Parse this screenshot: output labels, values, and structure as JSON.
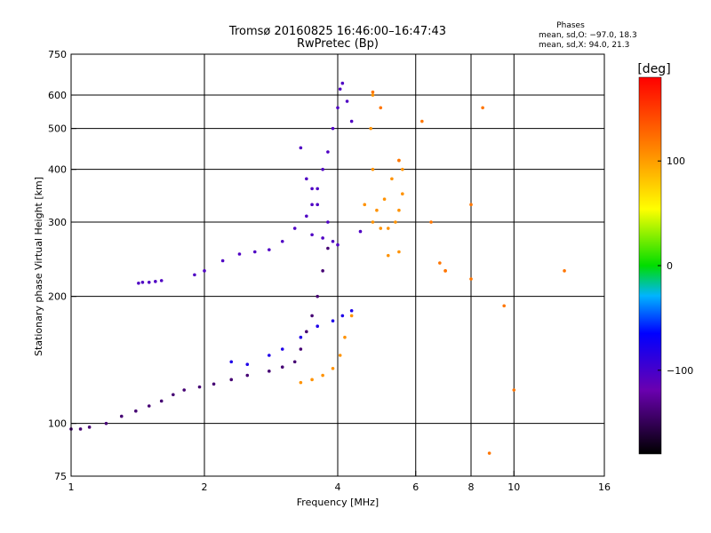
{
  "chart_data": {
    "type": "scatter",
    "title": "Tromsø 20160825 16:46:00–16:47:43",
    "subtitle": "RwPretec (Bp)",
    "xlabel": "Frequency [MHz]",
    "ylabel": "Stationary phase Virtual Height [km]",
    "x_scale": "log",
    "y_scale": "log",
    "xlim": [
      1,
      16
    ],
    "ylim": [
      75,
      750
    ],
    "x_ticks": [
      1,
      2,
      4,
      6,
      8,
      10,
      16
    ],
    "x_tick_labels": [
      "1",
      "2",
      "4",
      "6",
      "8",
      "10",
      "16"
    ],
    "y_ticks": [
      75,
      100,
      200,
      300,
      400,
      500,
      600,
      750
    ],
    "y_tick_labels": [
      "75",
      "100",
      "200",
      "300",
      "400",
      "500",
      "600",
      "750"
    ],
    "grid": true,
    "phases": {
      "heading": "Phases",
      "line_o": "mean, sd,O: −97.0, 18.3",
      "line_x": "mean, sd,X:  94.0, 21.3"
    },
    "colorbar": {
      "label": "[deg]",
      "min": -180,
      "max": 180,
      "ticks": [
        100,
        0,
        -100
      ],
      "tick_labels": [
        "100",
        "0",
        "−100"
      ]
    },
    "series": [
      {
        "phase_deg": -140,
        "x": [
          1.0,
          1.05,
          1.1,
          1.2,
          1.3,
          1.4,
          1.5,
          1.6,
          1.7,
          1.8,
          1.95,
          2.1,
          2.3,
          2.5,
          2.8,
          3.0,
          3.2,
          3.3,
          3.4,
          3.5,
          3.6,
          3.7,
          3.8
        ],
        "y": [
          97,
          97,
          98,
          100,
          104,
          107,
          110,
          113,
          117,
          120,
          122,
          124,
          127,
          130,
          133,
          136,
          140,
          150,
          165,
          180,
          200,
          230,
          260
        ]
      },
      {
        "phase_deg": -105,
        "x": [
          1.42,
          1.45,
          1.5,
          1.55,
          1.6,
          1.9,
          2.0,
          2.2,
          2.4,
          2.6,
          2.8,
          3.0,
          3.2,
          3.4,
          3.5,
          3.6,
          3.7,
          3.8,
          3.9,
          4.0,
          4.05,
          4.1,
          4.2,
          4.3,
          4.5,
          3.8,
          3.6,
          3.5,
          3.4,
          3.3,
          3.5,
          3.7,
          3.9,
          4.0
        ],
        "y": [
          215,
          216,
          216,
          217,
          218,
          225,
          230,
          243,
          252,
          255,
          258,
          270,
          290,
          310,
          330,
          360,
          400,
          440,
          500,
          560,
          620,
          640,
          580,
          520,
          285,
          300,
          330,
          360,
          380,
          450,
          280,
          275,
          270,
          265
        ]
      },
      {
        "phase_deg": -80,
        "x": [
          2.3,
          2.5,
          2.8,
          3.0,
          3.3,
          3.6,
          3.9,
          4.1,
          4.3
        ],
        "y": [
          140,
          138,
          145,
          150,
          160,
          170,
          175,
          180,
          185
        ]
      },
      {
        "phase_deg": 105,
        "x": [
          3.3,
          3.5,
          3.7,
          3.9,
          4.05,
          4.15,
          4.3,
          4.6,
          4.8,
          5.0,
          5.2,
          5.4,
          5.5,
          5.6,
          5.6,
          5.5,
          5.3,
          5.1,
          4.9,
          4.8,
          4.75,
          4.8,
          5.2,
          5.5
        ],
        "y": [
          125,
          127,
          130,
          135,
          145,
          160,
          180,
          330,
          300,
          290,
          290,
          300,
          320,
          350,
          400,
          420,
          380,
          340,
          320,
          400,
          500,
          600,
          250,
          255
        ]
      },
      {
        "phase_deg": 120,
        "x": [
          4.8,
          5.0,
          5.5,
          6.2,
          6.8,
          7.0,
          8.0,
          8.5,
          8.8,
          9.5,
          10.0,
          13.0,
          8.0,
          7.0,
          6.5
        ],
        "y": [
          610,
          560,
          420,
          520,
          240,
          230,
          220,
          560,
          85,
          190,
          120,
          230,
          330,
          230,
          300
        ]
      }
    ]
  }
}
